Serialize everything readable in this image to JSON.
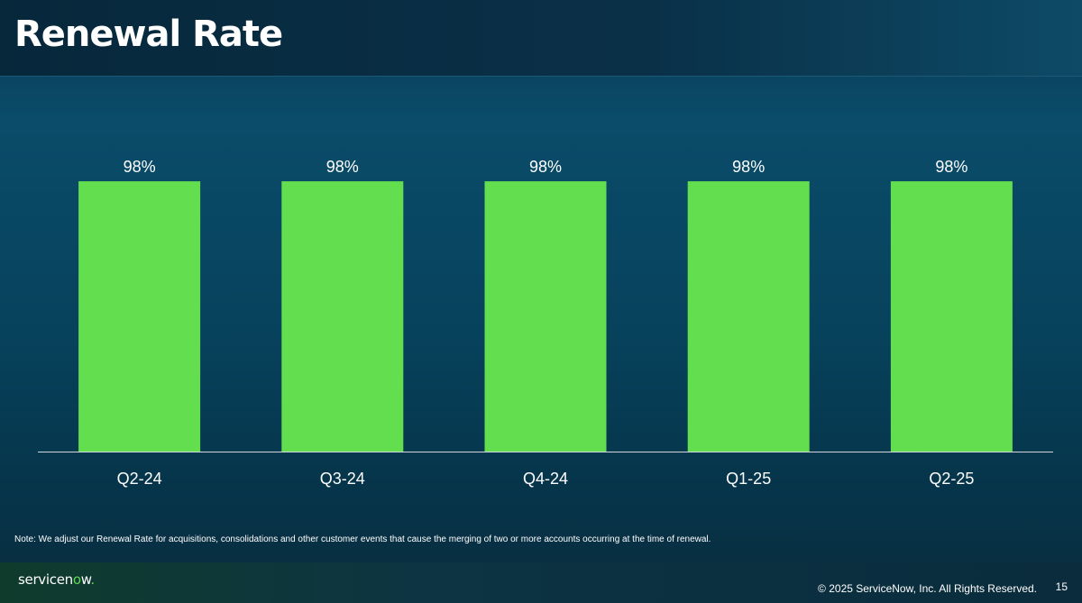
{
  "header": {
    "title": "Renewal Rate"
  },
  "chart_data": {
    "type": "bar",
    "categories": [
      "Q2-24",
      "Q3-24",
      "Q4-24",
      "Q1-25",
      "Q2-25"
    ],
    "values": [
      98,
      98,
      98,
      98,
      98
    ],
    "value_labels": [
      "98%",
      "98%",
      "98%",
      "98%",
      "98%"
    ],
    "title": "",
    "xlabel": "",
    "ylabel": "",
    "ylim": [
      0,
      100
    ],
    "grid": false,
    "bar_color": "#62de4e"
  },
  "note": "Note: We adjust our Renewal Rate for acquisitions, consolidations and other customer events that cause the merging of two or more accounts occurring at the time of renewal.",
  "footer": {
    "logo_prefix": "servicen",
    "logo_o": "o",
    "logo_suffix": "w",
    "logo_mark": ".",
    "copyright": "© 2025 ServiceNow, Inc. All Rights Reserved.",
    "page_number": "15"
  }
}
